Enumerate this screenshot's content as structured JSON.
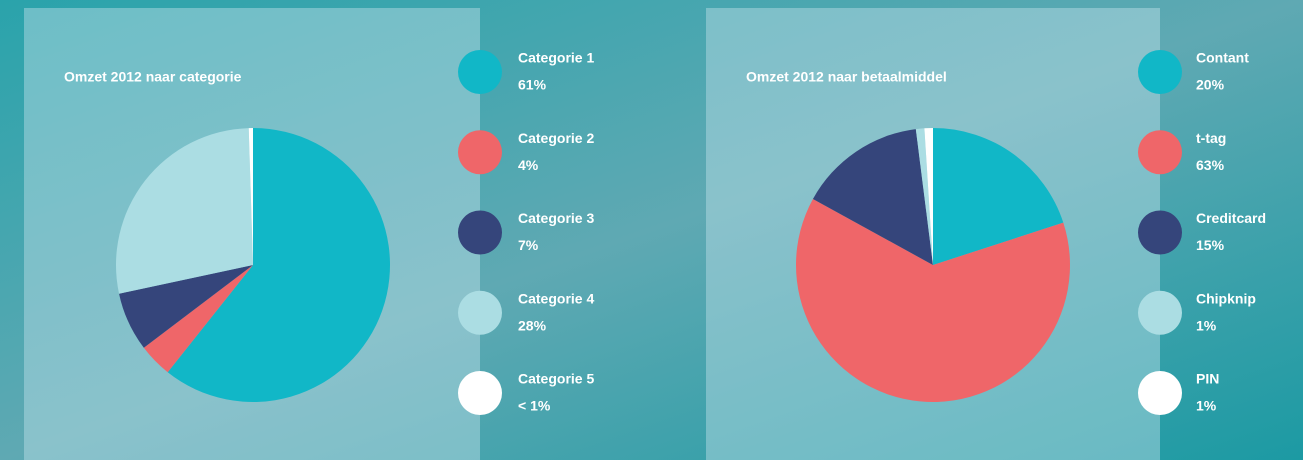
{
  "chart_data": [
    {
      "type": "pie",
      "title": "Omzet 2012 naar categorie",
      "categories": [
        "Categorie 1",
        "Categorie 2",
        "Categorie 3",
        "Categorie 4",
        "Categorie 5"
      ],
      "values": [
        61,
        4,
        7,
        28,
        0.5
      ],
      "value_labels": [
        "61%",
        "4%",
        "7%",
        "28%",
        "< 1%"
      ],
      "colors": [
        "#11b7c7",
        "#ef6669",
        "#35457b",
        "#abdde3",
        "#ffffff"
      ]
    },
    {
      "type": "pie",
      "title": "Omzet 2012 naar betaalmiddel",
      "categories": [
        "Contant",
        "t-tag",
        "Creditcard",
        "Chipknip",
        "PIN"
      ],
      "values": [
        20,
        63,
        15,
        1,
        1
      ],
      "value_labels": [
        "20%",
        "63%",
        "15%",
        "1%",
        "1%"
      ],
      "colors": [
        "#11b7c7",
        "#ef6669",
        "#35457b",
        "#abdde3",
        "#ffffff"
      ]
    }
  ]
}
